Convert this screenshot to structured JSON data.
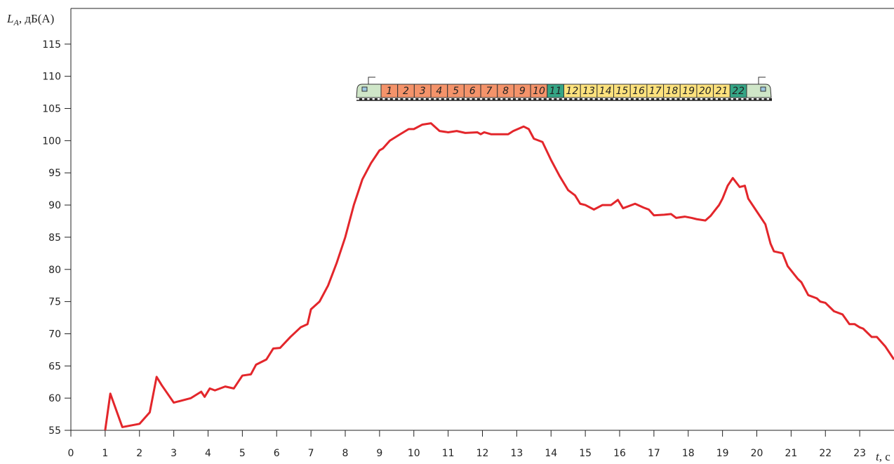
{
  "chart_data": {
    "type": "line",
    "y_label": {
      "main": "L",
      "sub": "A",
      "unit": ", дБ(А)"
    },
    "x_label": {
      "main": "t",
      "unit": ", с"
    },
    "xlim": [
      0,
      24
    ],
    "ylim": [
      55,
      120
    ],
    "xticks": [
      0,
      1,
      2,
      3,
      4,
      5,
      6,
      7,
      8,
      9,
      10,
      11,
      12,
      13,
      14,
      15,
      16,
      17,
      18,
      19,
      20,
      21,
      22,
      23
    ],
    "yticks": [
      55,
      60,
      65,
      70,
      75,
      80,
      85,
      90,
      95,
      100,
      105,
      110,
      115
    ],
    "series": [
      {
        "color": "#e3262b",
        "x": [
          1,
          1.15,
          1.5,
          2,
          2.3,
          2.5,
          2.65,
          3,
          3.5,
          3.8,
          3.9,
          4.05,
          4.2,
          4.5,
          4.75,
          5,
          5.25,
          5.4,
          5.7,
          5.9,
          6.1,
          6.4,
          6.7,
          6.9,
          7,
          7.25,
          7.5,
          7.75,
          8,
          8.25,
          8.5,
          8.75,
          9,
          9.1,
          9.3,
          9.6,
          9.85,
          10,
          10.25,
          10.5,
          10.75,
          11,
          11.25,
          11.5,
          11.85,
          11.95,
          12.05,
          12.25,
          12.75,
          12.9,
          13.2,
          13.35,
          13.5,
          13.75,
          14,
          14.25,
          14.5,
          14.7,
          14.85,
          15,
          15.25,
          15.5,
          15.75,
          15.95,
          16.1,
          16.45,
          16.7,
          16.85,
          17,
          17.3,
          17.5,
          17.65,
          17.9,
          18.1,
          18.25,
          18.5,
          18.65,
          18.9,
          19,
          19.15,
          19.3,
          19.5,
          19.65,
          19.75,
          20,
          20.25,
          20.4,
          20.5,
          20.75,
          20.9,
          21.2,
          21.3,
          21.5,
          21.75,
          21.85,
          22,
          22.25,
          22.5,
          22.7,
          22.85,
          23,
          23.1,
          23.35,
          23.5,
          23.75,
          24
        ],
        "values": [
          55,
          60.7,
          55.5,
          56,
          57.8,
          63.3,
          62,
          59.3,
          60,
          61,
          60.2,
          61.5,
          61.2,
          61.8,
          61.5,
          63.5,
          63.7,
          65.2,
          66,
          67.7,
          67.8,
          69.5,
          71,
          71.5,
          73.8,
          75,
          77.5,
          81,
          85,
          90,
          94,
          96.5,
          98.5,
          98.8,
          100,
          101,
          101.8,
          101.8,
          102.5,
          102.7,
          101.5,
          101.3,
          101.5,
          101.2,
          101.3,
          101,
          101.3,
          101,
          101,
          101.5,
          102.2,
          101.8,
          100.3,
          99.8,
          97,
          94.5,
          92.3,
          91.5,
          90.2,
          90,
          89.3,
          90,
          90,
          90.8,
          89.5,
          90.2,
          89.6,
          89.3,
          88.4,
          88.5,
          88.6,
          88,
          88.2,
          88,
          87.8,
          87.6,
          88.3,
          90,
          91,
          93,
          94.2,
          92.8,
          93,
          91,
          89,
          87,
          84,
          82.8,
          82.5,
          80.5,
          78.5,
          78,
          76,
          75.5,
          75,
          74.8,
          73.5,
          73,
          71.5,
          71.5,
          71,
          70.8,
          69.5,
          69.5,
          68,
          66
        ]
      }
    ],
    "train": {
      "cars": [
        "1",
        "2",
        "3",
        "4",
        "5",
        "6",
        "7",
        "8",
        "9",
        "10",
        "11",
        "12",
        "13",
        "14",
        "15",
        "16",
        "17",
        "18",
        "19",
        "20",
        "21",
        "22"
      ],
      "colors": [
        "#f4936a",
        "#f4936a",
        "#f4936a",
        "#f4936a",
        "#f4936a",
        "#f4936a",
        "#f4936a",
        "#f4936a",
        "#f4936a",
        "#f4936a",
        "#35a585",
        "#fde27d",
        "#fde27d",
        "#fde27d",
        "#fde27d",
        "#fde27d",
        "#fde27d",
        "#fde27d",
        "#fde27d",
        "#fde27d",
        "#fde27d",
        "#35a585"
      ],
      "loco_color": "#cfe6c8"
    }
  }
}
